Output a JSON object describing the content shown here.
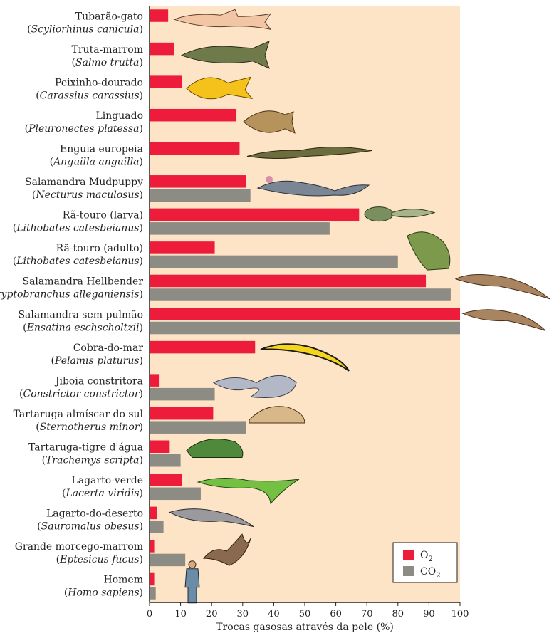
{
  "chart_data": {
    "type": "bar",
    "orientation": "horizontal",
    "xlabel": "Trocas gasosas através da pele (%)",
    "xlim": [
      0,
      100
    ],
    "xticks": [
      0,
      10,
      20,
      30,
      40,
      50,
      60,
      70,
      80,
      90,
      100
    ],
    "plot_background": "#fde4c6",
    "legend_position": "bottom-right",
    "categories": [
      {
        "name": "Tubarão-gato",
        "sci": "Scyliorhinus canicula",
        "animal": "shark-icon"
      },
      {
        "name": "Truta-marrom",
        "sci": "Salmo trutta",
        "animal": "trout-icon"
      },
      {
        "name": "Peixinho-dourado",
        "sci": "Carassius carassius",
        "animal": "goldfish-icon"
      },
      {
        "name": "Linguado",
        "sci": "Pleuronectes platessa",
        "animal": "flounder-icon"
      },
      {
        "name": "Enguia europeia",
        "sci": "Anguilla anguilla",
        "animal": "eel-icon"
      },
      {
        "name": "Salamandra Mudpuppy",
        "sci": "Necturus maculosus",
        "animal": "mudpuppy-icon"
      },
      {
        "name": "Rã-touro (larva)",
        "sci": "Lithobates catesbeianus",
        "animal": "tadpole-icon"
      },
      {
        "name": "Rã-touro (adulto)",
        "sci": "Lithobates catesbeianus",
        "animal": "frog-icon"
      },
      {
        "name": "Salamandra Hellbender",
        "sci": "Cryptobranchus alleganiensis",
        "animal": "hellbender-icon"
      },
      {
        "name": "Salamandra sem pulmão",
        "sci": "Ensatina eschscholtzii",
        "animal": "salamander-icon"
      },
      {
        "name": "Cobra-do-mar",
        "sci": "Pelamis platurus",
        "animal": "sea-snake-icon"
      },
      {
        "name": "Jiboia constritora",
        "sci": "Constrictor constrictor",
        "animal": "boa-icon"
      },
      {
        "name": "Tartaruga almíscar do sul",
        "sci": "Sternotherus minor",
        "animal": "musk-turtle-icon"
      },
      {
        "name": "Tartaruga-tigre d'água",
        "sci": "Trachemys scripta",
        "animal": "slider-turtle-icon"
      },
      {
        "name": "Lagarto-verde",
        "sci": "Lacerta viridis",
        "animal": "green-lizard-icon"
      },
      {
        "name": "Lagarto-do-deserto",
        "sci": "Sauromalus obesus",
        "animal": "desert-lizard-icon"
      },
      {
        "name": "Grande morcego-marrom",
        "sci": "Eptesicus fucus",
        "animal": "bat-icon"
      },
      {
        "name": "Homem",
        "sci": "Homo sapiens",
        "animal": "human-icon"
      }
    ],
    "series": [
      {
        "name": "O2",
        "legend_main": "O",
        "legend_sub": "2",
        "color": "#ec1c3a",
        "values": [
          6,
          8,
          10.5,
          28,
          29,
          31,
          67.5,
          21,
          89,
          100,
          34,
          3,
          20.5,
          6.5,
          10.5,
          2.5,
          1.5,
          1.5
        ]
      },
      {
        "name": "CO2",
        "legend_main": "CO",
        "legend_sub": "2",
        "color": "#8c8c84",
        "values": [
          null,
          null,
          null,
          null,
          null,
          32.5,
          58,
          80,
          97,
          100,
          null,
          21,
          31,
          10,
          16.5,
          4.5,
          11.5,
          2
        ]
      }
    ]
  }
}
